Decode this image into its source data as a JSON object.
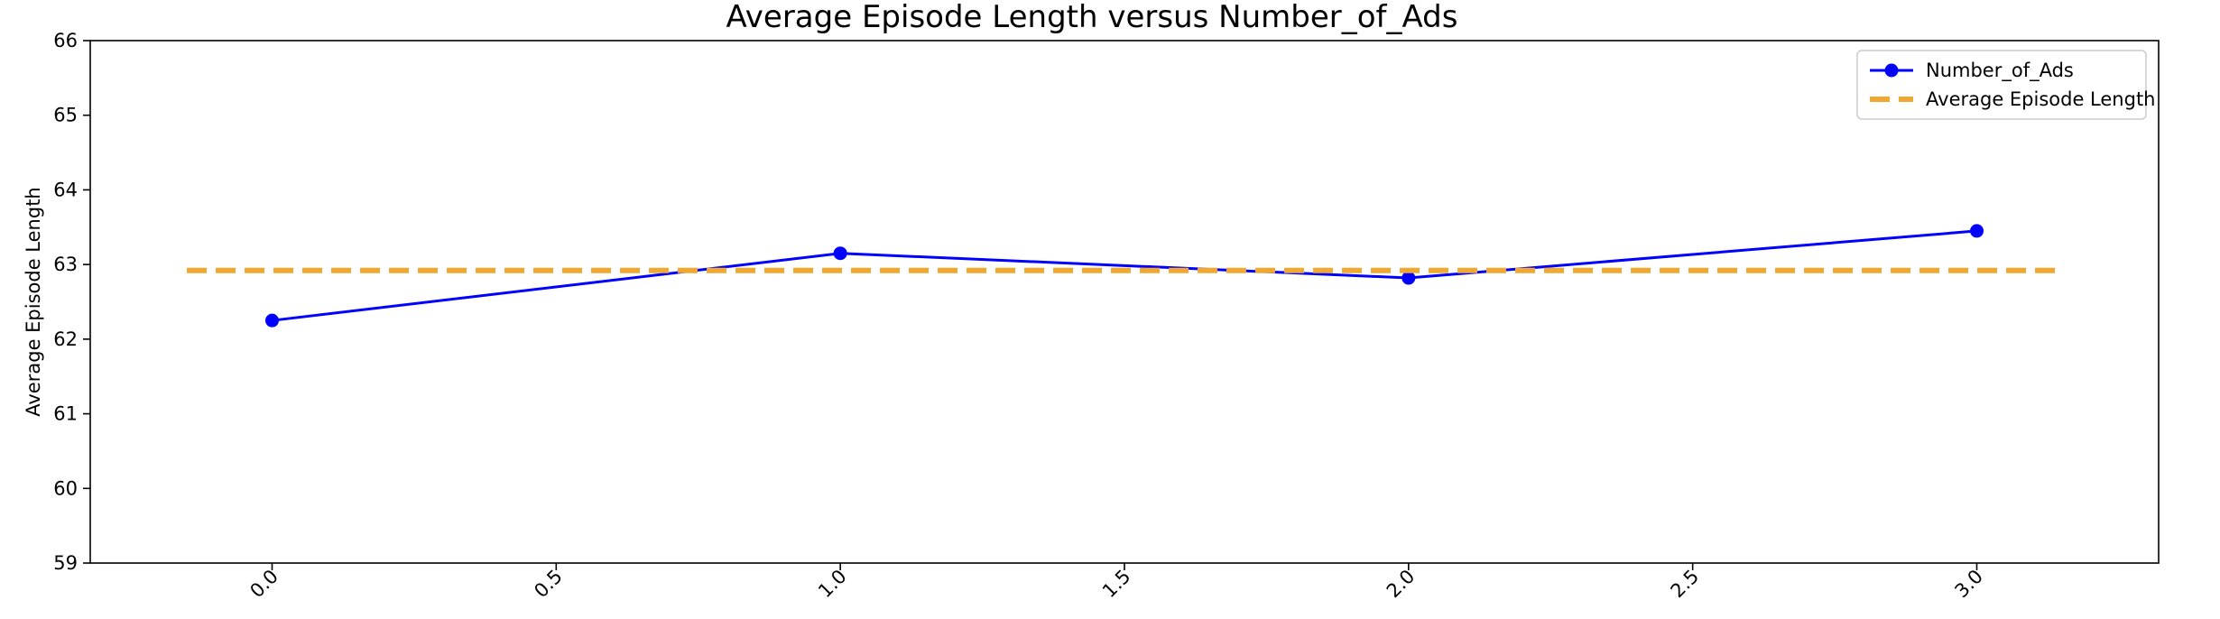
{
  "chart_data": {
    "type": "line",
    "title": "Average Episode Length versus Number_of_Ads",
    "xlabel": "",
    "ylabel": "Average Episode Length",
    "xlim": [
      -0.32,
      3.32
    ],
    "ylim": [
      59,
      66
    ],
    "x_ticks": [
      "0.0",
      "0.5",
      "1.0",
      "1.5",
      "2.0",
      "2.5",
      "3.0"
    ],
    "y_ticks": [
      "59",
      "60",
      "61",
      "62",
      "63",
      "64",
      "65",
      "66"
    ],
    "x_tick_rotation": -45,
    "grid": false,
    "legend_position": "top-right",
    "series": [
      {
        "name": "Number_of_Ads",
        "style": "solid-line-with-circle-markers",
        "color": "#0000ff",
        "x": [
          0,
          1,
          2,
          3
        ],
        "y": [
          62.25,
          63.15,
          62.82,
          63.45
        ]
      },
      {
        "name": "Average Episode Length",
        "style": "dashed-horizontal-line",
        "color": "#f0a830",
        "x": [
          -0.15,
          3.15
        ],
        "y": [
          62.92,
          62.92
        ]
      }
    ]
  }
}
